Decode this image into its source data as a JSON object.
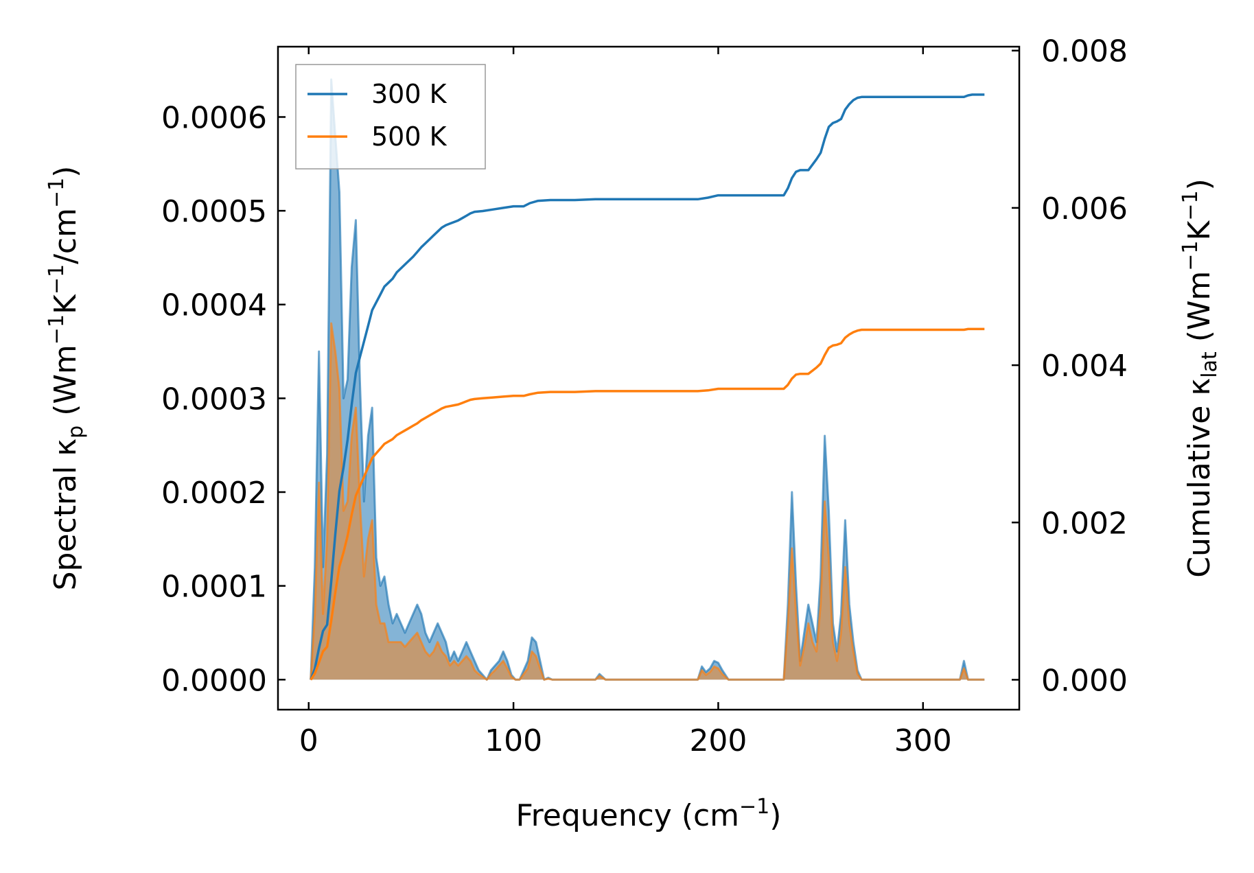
{
  "chart_data": {
    "type": "line",
    "xlabel": {
      "pre": "Frequency (cm",
      "sup": "−1",
      "post": ")"
    },
    "ylabel_left": {
      "pre": "Spectral κ",
      "sub": "p",
      "mid1": " (Wm",
      "sup1": "−1",
      "mid2": "K",
      "sup2": "−1",
      "mid3": "/cm",
      "sup3": "−1",
      "post": ")"
    },
    "ylabel_right": {
      "pre": "Cumulative κ",
      "sub": "lat",
      "mid1": " (Wm",
      "sup1": "−1",
      "mid2": "K",
      "sup2": "−1",
      "post": ")"
    },
    "xlim": [
      -15,
      347
    ],
    "ylim_left": [
      -3.2e-05,
      0.000675
    ],
    "ylim_right": [
      -0.00038,
      0.00805
    ],
    "xticks": [
      0,
      100,
      200,
      300
    ],
    "xtick_labels": [
      "0",
      "100",
      "200",
      "300"
    ],
    "yticks_left": [
      0,
      0.0001,
      0.0002,
      0.0003,
      0.0004,
      0.0005,
      0.0006
    ],
    "ytick_labels_left": [
      "0.0000",
      "0.0001",
      "0.0002",
      "0.0003",
      "0.0004",
      "0.0005",
      "0.0006"
    ],
    "yticks_right": [
      0,
      0.002,
      0.004,
      0.006,
      0.008
    ],
    "ytick_labels_right": [
      "0.000",
      "0.002",
      "0.004",
      "0.006",
      "0.008"
    ],
    "legend": {
      "position": "top-left",
      "entries": [
        "300 K",
        "500 K"
      ]
    },
    "colors": {
      "series_300K": "#1f77b4",
      "series_500K": "#ff7f0e",
      "fill_300K": "#1f77b4",
      "fill_500K": "#ff7f0e"
    },
    "spectral": [
      {
        "name": "300 K",
        "axis": "left",
        "x": [
          1,
          3,
          5,
          7,
          9,
          11,
          13,
          15,
          17,
          19,
          21,
          23,
          25,
          27,
          29,
          31,
          33,
          35,
          37,
          39,
          41,
          43,
          45,
          47,
          49,
          51,
          53,
          55,
          57,
          59,
          61,
          63,
          65,
          67,
          69,
          71,
          73,
          75,
          77,
          79,
          81,
          83,
          85,
          87,
          89,
          91,
          93,
          95,
          97,
          99,
          101,
          103,
          105,
          107,
          109,
          111,
          113,
          115,
          117,
          119,
          121,
          130,
          140,
          142,
          145,
          150,
          160,
          180,
          190,
          192,
          194,
          196,
          198,
          200,
          202,
          205,
          220,
          232,
          234,
          236,
          238,
          240,
          242,
          244,
          246,
          248,
          250,
          252,
          254,
          256,
          258,
          260,
          262,
          264,
          266,
          268,
          270,
          280,
          300,
          318,
          320,
          322,
          324,
          330
        ],
        "y": [
          0,
          0.00012,
          0.00035,
          0.00012,
          0.00024,
          0.00064,
          0.00058,
          0.00052,
          0.0003,
          0.00032,
          0.00044,
          0.00049,
          0.00032,
          0.00019,
          0.00026,
          0.00029,
          0.00013,
          0.0001,
          0.00011,
          8e-05,
          6e-05,
          7e-05,
          6e-05,
          5e-05,
          6e-05,
          7e-05,
          8e-05,
          7e-05,
          5e-05,
          4e-05,
          5e-05,
          6e-05,
          5e-05,
          4e-05,
          2e-05,
          3e-05,
          2e-05,
          3e-05,
          4e-05,
          3e-05,
          2e-05,
          1e-05,
          5e-06,
          0,
          1e-05,
          1.5e-05,
          2e-05,
          3e-05,
          2e-05,
          5e-06,
          0,
          0,
          1e-05,
          2e-05,
          4.5e-05,
          4e-05,
          2e-05,
          0,
          2e-06,
          0,
          0,
          0,
          0,
          6e-06,
          0,
          0,
          0,
          0,
          0,
          1.4e-05,
          8e-06,
          1.2e-05,
          2e-05,
          1.8e-05,
          1e-05,
          0,
          0,
          0,
          8e-05,
          0.0002,
          0.0001,
          2e-05,
          5e-05,
          8e-05,
          6e-05,
          4e-05,
          0.00011,
          0.00026,
          0.00018,
          6e-05,
          3e-05,
          7e-05,
          0.00017,
          8e-05,
          4e-05,
          1e-05,
          0,
          0,
          0,
          0,
          2e-05,
          0,
          0,
          0
        ]
      },
      {
        "name": "500 K",
        "axis": "left",
        "x": [
          1,
          3,
          5,
          7,
          9,
          11,
          13,
          15,
          17,
          19,
          21,
          23,
          25,
          27,
          29,
          31,
          33,
          35,
          37,
          39,
          41,
          43,
          45,
          47,
          49,
          51,
          53,
          55,
          57,
          59,
          61,
          63,
          65,
          67,
          69,
          71,
          73,
          75,
          77,
          79,
          81,
          83,
          85,
          87,
          89,
          91,
          93,
          95,
          97,
          99,
          101,
          103,
          105,
          107,
          109,
          111,
          113,
          115,
          117,
          119,
          121,
          130,
          140,
          142,
          145,
          150,
          160,
          180,
          190,
          192,
          194,
          196,
          198,
          200,
          202,
          205,
          220,
          232,
          234,
          236,
          238,
          240,
          242,
          244,
          246,
          248,
          250,
          252,
          254,
          256,
          258,
          260,
          262,
          264,
          266,
          268,
          270,
          280,
          300,
          318,
          320,
          322,
          324,
          330
        ],
        "y": [
          0,
          7e-05,
          0.00021,
          7e-05,
          0.00015,
          0.00038,
          0.00035,
          0.00031,
          0.00018,
          0.00019,
          0.00026,
          0.00029,
          0.00019,
          0.00011,
          0.00015,
          0.00017,
          8e-05,
          6e-05,
          6e-05,
          4e-05,
          4e-05,
          4e-05,
          4e-05,
          3.5e-05,
          4e-05,
          4.5e-05,
          5e-05,
          4e-05,
          3e-05,
          2.5e-05,
          3e-05,
          4e-05,
          3e-05,
          2.5e-05,
          1.5e-05,
          2e-05,
          1.5e-05,
          2e-05,
          2.5e-05,
          2e-05,
          1e-05,
          6e-06,
          3e-06,
          0,
          6e-06,
          1e-05,
          1.5e-05,
          2e-05,
          1.2e-05,
          3e-06,
          0,
          0,
          6e-06,
          1.2e-05,
          3e-05,
          2.5e-05,
          1.2e-05,
          0,
          1e-06,
          0,
          0,
          0,
          0,
          4e-06,
          0,
          0,
          0,
          0,
          0,
          1e-05,
          5e-06,
          8e-06,
          1.4e-05,
          1.2e-05,
          6e-06,
          0,
          0,
          0,
          6e-05,
          0.00014,
          7e-05,
          1.5e-05,
          3.5e-05,
          6e-05,
          4e-05,
          3e-05,
          8e-05,
          0.00019,
          0.00013,
          4e-05,
          2e-05,
          5e-05,
          0.00012,
          6e-05,
          3e-05,
          6e-06,
          0,
          0,
          0,
          0,
          1.2e-05,
          0,
          0,
          0
        ]
      }
    ],
    "cumulative": [
      {
        "name": "300 K",
        "axis": "right",
        "x": [
          1,
          3,
          5,
          7,
          9,
          11,
          13,
          15,
          17,
          19,
          21,
          23,
          25,
          27,
          29,
          31,
          33,
          35,
          37,
          39,
          41,
          43,
          45,
          47,
          49,
          51,
          53,
          55,
          57,
          59,
          61,
          63,
          65,
          67,
          69,
          71,
          73,
          75,
          77,
          79,
          81,
          85,
          90,
          95,
          100,
          105,
          108,
          112,
          118,
          130,
          140,
          150,
          190,
          195,
          200,
          210,
          232,
          234,
          236,
          238,
          240,
          242,
          244,
          246,
          248,
          250,
          252,
          254,
          256,
          258,
          260,
          262,
          264,
          266,
          268,
          270,
          280,
          300,
          320,
          322,
          324,
          330
        ],
        "y": [
          0,
          0.00014,
          0.0004,
          0.00062,
          0.0007,
          0.00125,
          0.00185,
          0.0024,
          0.0027,
          0.00305,
          0.0035,
          0.0039,
          0.0041,
          0.0043,
          0.0045,
          0.0047,
          0.0048,
          0.0049,
          0.005,
          0.00505,
          0.0051,
          0.00518,
          0.00523,
          0.00528,
          0.00533,
          0.00538,
          0.00544,
          0.0055,
          0.00555,
          0.0056,
          0.00565,
          0.0057,
          0.00575,
          0.00578,
          0.0058,
          0.00582,
          0.00584,
          0.00587,
          0.0059,
          0.00593,
          0.00595,
          0.00596,
          0.00598,
          0.006,
          0.00602,
          0.00602,
          0.00606,
          0.00609,
          0.0061,
          0.0061,
          0.00611,
          0.00611,
          0.00611,
          0.00613,
          0.00616,
          0.00616,
          0.00616,
          0.00625,
          0.00638,
          0.00646,
          0.00648,
          0.00648,
          0.00648,
          0.00655,
          0.00662,
          0.0067,
          0.00688,
          0.00703,
          0.00708,
          0.0071,
          0.00713,
          0.00725,
          0.00732,
          0.00737,
          0.0074,
          0.00741,
          0.00741,
          0.00741,
          0.00741,
          0.00743,
          0.00744,
          0.00744
        ]
      },
      {
        "name": "500 K",
        "axis": "right",
        "x": [
          1,
          3,
          5,
          7,
          9,
          11,
          13,
          15,
          17,
          19,
          21,
          23,
          25,
          27,
          29,
          31,
          33,
          35,
          37,
          39,
          41,
          43,
          45,
          47,
          49,
          51,
          53,
          55,
          57,
          59,
          61,
          63,
          65,
          67,
          69,
          71,
          73,
          75,
          77,
          79,
          81,
          85,
          90,
          95,
          100,
          105,
          108,
          112,
          118,
          130,
          140,
          150,
          190,
          195,
          200,
          210,
          232,
          234,
          236,
          238,
          240,
          242,
          244,
          246,
          248,
          250,
          252,
          254,
          256,
          258,
          260,
          262,
          264,
          266,
          268,
          270,
          280,
          300,
          320,
          322,
          324,
          330
        ],
        "y": [
          0,
          8e-05,
          0.00022,
          0.00036,
          0.00042,
          0.00075,
          0.00111,
          0.00144,
          0.00162,
          0.00183,
          0.0021,
          0.00234,
          0.00246,
          0.00258,
          0.0027,
          0.00282,
          0.00288,
          0.00294,
          0.003,
          0.00303,
          0.00306,
          0.00311,
          0.00314,
          0.00317,
          0.0032,
          0.00323,
          0.00326,
          0.0033,
          0.00333,
          0.00336,
          0.00339,
          0.00342,
          0.00345,
          0.00347,
          0.00348,
          0.00349,
          0.0035,
          0.00352,
          0.00354,
          0.00356,
          0.00357,
          0.00358,
          0.00359,
          0.0036,
          0.00361,
          0.00361,
          0.00363,
          0.00365,
          0.00366,
          0.00366,
          0.00367,
          0.00367,
          0.00367,
          0.00368,
          0.0037,
          0.0037,
          0.0037,
          0.00375,
          0.00383,
          0.00388,
          0.00389,
          0.00389,
          0.00389,
          0.00393,
          0.00397,
          0.00402,
          0.00413,
          0.00422,
          0.00425,
          0.00426,
          0.00428,
          0.00435,
          0.00439,
          0.00442,
          0.00444,
          0.00445,
          0.00445,
          0.00445,
          0.00445,
          0.00446,
          0.00446,
          0.00446
        ]
      }
    ]
  }
}
